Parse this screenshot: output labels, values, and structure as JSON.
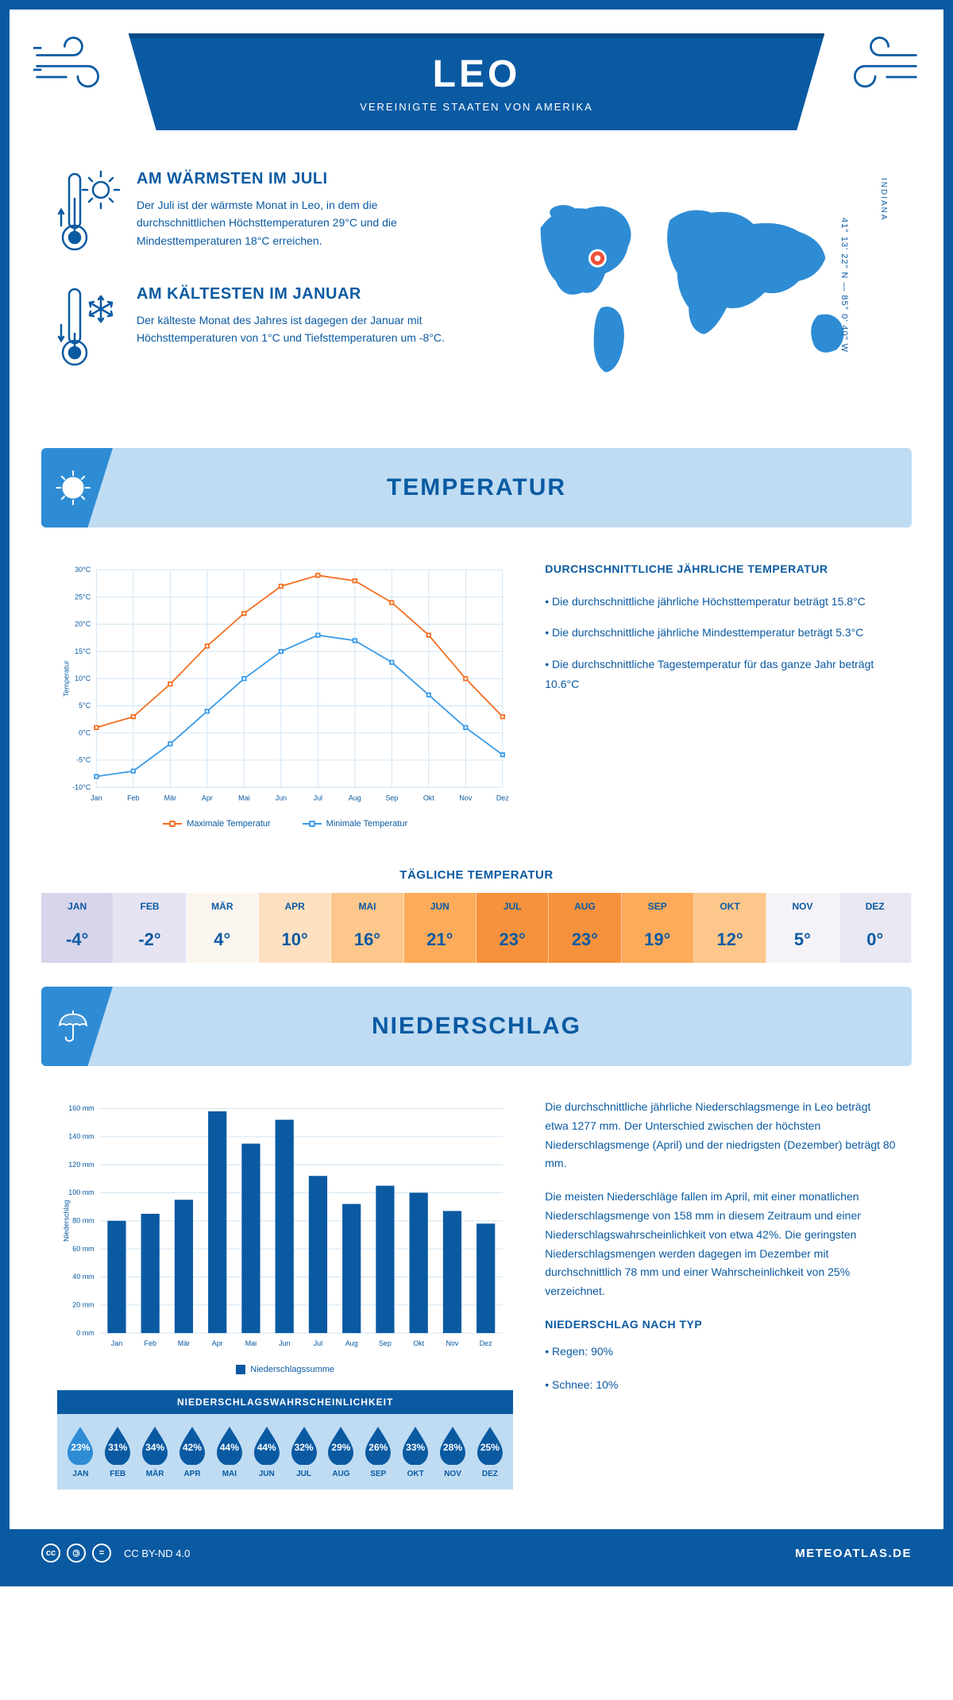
{
  "colors": {
    "brand": "#0a5aa2",
    "brand_dark": "#084a85",
    "light_blue": "#bfdcf3",
    "mid_blue": "#2e8cd5",
    "orange": "#f36f21",
    "line_max": "#f36f21",
    "line_min": "#3a9be8",
    "grid": "#cde2f3",
    "white": "#ffffff"
  },
  "header": {
    "title": "LEO",
    "subtitle": "VEREINIGTE STAATEN VON AMERIKA"
  },
  "intro": {
    "warm": {
      "title": "AM WÄRMSTEN IM JULI",
      "text": "Der Juli ist der wärmste Monat in Leo, in dem die durchschnittlichen Höchsttemperaturen 29°C und die Mindesttemperaturen 18°C erreichen."
    },
    "cold": {
      "title": "AM KÄLTESTEN IM JANUAR",
      "text": "Der kälteste Monat des Jahres ist dagegen der Januar mit Höchsttemperaturen von 1°C und Tiefsttemperaturen um -8°C."
    },
    "region": "INDIANA",
    "coords": "41° 13' 22\" N — 85° 0' 40\" W"
  },
  "months_short": [
    "Jan",
    "Feb",
    "Mär",
    "Apr",
    "Mai",
    "Jun",
    "Jul",
    "Aug",
    "Sep",
    "Okt",
    "Nov",
    "Dez"
  ],
  "temperature": {
    "section_title": "TEMPERATUR",
    "chart": {
      "type": "line",
      "y_label": "Temperatur",
      "y_min": -10,
      "y_max": 30,
      "y_step": 5,
      "max_series": [
        1,
        3,
        9,
        16,
        22,
        27,
        29,
        28,
        24,
        18,
        10,
        3
      ],
      "min_series": [
        -8,
        -7,
        -2,
        4,
        10,
        15,
        18,
        17,
        13,
        7,
        1,
        -4
      ],
      "max_color": "#f36f21",
      "min_color": "#3a9be8",
      "max_legend": "Maximale Temperatur",
      "min_legend": "Minimale Temperatur",
      "grid_color": "#cde2f3",
      "marker_size": 5,
      "line_width": 2,
      "fontsize": 10
    },
    "summary": {
      "title": "DURCHSCHNITTLICHE JÄHRLICHE TEMPERATUR",
      "points": [
        "• Die durchschnittliche jährliche Höchsttemperatur beträgt 15.8°C",
        "• Die durchschnittliche jährliche Mindesttemperatur beträgt 5.3°C",
        "• Die durchschnittliche Tagestemperatur für das ganze Jahr beträgt 10.6°C"
      ]
    },
    "daily": {
      "title": "TÄGLICHE TEMPERATUR",
      "months": [
        "JAN",
        "FEB",
        "MÄR",
        "APR",
        "MAI",
        "JUN",
        "JUL",
        "AUG",
        "SEP",
        "OKT",
        "NOV",
        "DEZ"
      ],
      "values": [
        "-4°",
        "-2°",
        "4°",
        "10°",
        "16°",
        "21°",
        "23°",
        "23°",
        "19°",
        "12°",
        "5°",
        "0°"
      ],
      "bg_colors": [
        "#d7d5ea",
        "#e6e4f2",
        "#fbf5f0",
        "#fde1c1",
        "#fdc68a",
        "#fbab5a",
        "#f7923c",
        "#f7923c",
        "#fbab5a",
        "#fdc68a",
        "#f6f3f8",
        "#e9e8f2"
      ]
    }
  },
  "precipitation": {
    "section_title": "NIEDERSCHLAG",
    "chart": {
      "type": "bar",
      "y_label": "Niederschlag",
      "y_min": 0,
      "y_max": 160,
      "y_step": 20,
      "values": [
        80,
        85,
        95,
        158,
        135,
        152,
        112,
        92,
        105,
        100,
        87,
        78
      ],
      "bar_color": "#0a5aa2",
      "legend": "Niederschlagssumme",
      "grid_color": "#cde2f3",
      "bar_width": 0.55,
      "fontsize": 10
    },
    "text1": "Die durchschnittliche jährliche Niederschlagsmenge in Leo beträgt etwa 1277 mm. Der Unterschied zwischen der höchsten Niederschlagsmenge (April) und der niedrigsten (Dezember) beträgt 80 mm.",
    "text2": "Die meisten Niederschläge fallen im April, mit einer monatlichen Niederschlagsmenge von 158 mm in diesem Zeitraum und einer Niederschlagswahrscheinlichkeit von etwa 42%. Die geringsten Niederschlagsmengen werden dagegen im Dezember mit durchschnittlich 78 mm und einer Wahrscheinlichkeit von 25% verzeichnet.",
    "by_type_title": "NIEDERSCHLAG NACH TYP",
    "by_type": [
      "• Regen: 90%",
      "• Schnee: 10%"
    ],
    "probability": {
      "title": "NIEDERSCHLAGSWAHRSCHEINLICHKEIT",
      "months": [
        "JAN",
        "FEB",
        "MÄR",
        "APR",
        "MAI",
        "JUN",
        "JUL",
        "AUG",
        "SEP",
        "OKT",
        "NOV",
        "DEZ"
      ],
      "values": [
        "23%",
        "31%",
        "34%",
        "42%",
        "44%",
        "44%",
        "32%",
        "29%",
        "26%",
        "33%",
        "28%",
        "25%"
      ],
      "drop_fill": "#0a5aa2",
      "drop_fill_low": "#2e8cd5"
    }
  },
  "footer": {
    "license": "CC BY-ND 4.0",
    "site": "METEOATLAS.DE"
  }
}
